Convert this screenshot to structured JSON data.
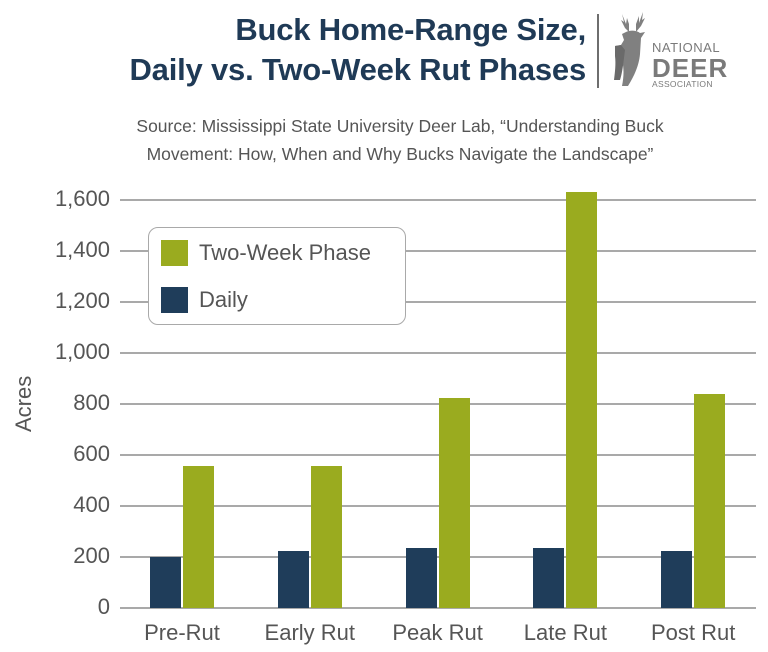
{
  "header": {
    "title_line1": "Buck Home-Range Size,",
    "title_line2": "Daily vs. Two-Week Rut Phases",
    "subtitle_line1": "Source: Mississippi State University Deer Lab, “Understanding Buck",
    "subtitle_line2": "Movement: How, When and Why Bucks Navigate the Landscape”",
    "logo": {
      "icon": "deer-head-icon",
      "line1": "NATIONAL",
      "line2": "DEER",
      "line3": "ASSOCIATION"
    }
  },
  "colors": {
    "two_week": "#9aab1f",
    "daily": "#1f3d5a",
    "title": "#1f3a56",
    "text": "#555555",
    "grid": "#a9a9a9"
  },
  "chart_data": {
    "type": "bar",
    "title": "Buck Home-Range Size, Daily vs. Two-Week Rut Phases",
    "subtitle": "Source: Mississippi State University Deer Lab, “Understanding Buck Movement: How, When and Why Bucks Navigate the Landscape”",
    "xlabel": "",
    "ylabel": "Acres",
    "ylim": [
      0,
      1600
    ],
    "yticks": [
      "0",
      "200",
      "400",
      "600",
      "800",
      "1,000",
      "1,200",
      "1,400",
      "1,600"
    ],
    "grid": true,
    "legend_position": "upper-left (inside plot)",
    "categories": [
      "Pre-Rut",
      "Early Rut",
      "Peak Rut",
      "Late Rut",
      "Post Rut"
    ],
    "series": [
      {
        "name": "Daily",
        "color": "#1f3d5a",
        "values": [
          200,
          225,
          235,
          235,
          225
        ]
      },
      {
        "name": "Two-Week Phase",
        "color": "#9aab1f",
        "values": [
          555,
          555,
          825,
          1630,
          838
        ]
      }
    ]
  },
  "legend": {
    "items": [
      {
        "label": "Two-Week Phase",
        "color": "#9aab1f"
      },
      {
        "label": "Daily",
        "color": "#1f3d5a"
      }
    ]
  }
}
